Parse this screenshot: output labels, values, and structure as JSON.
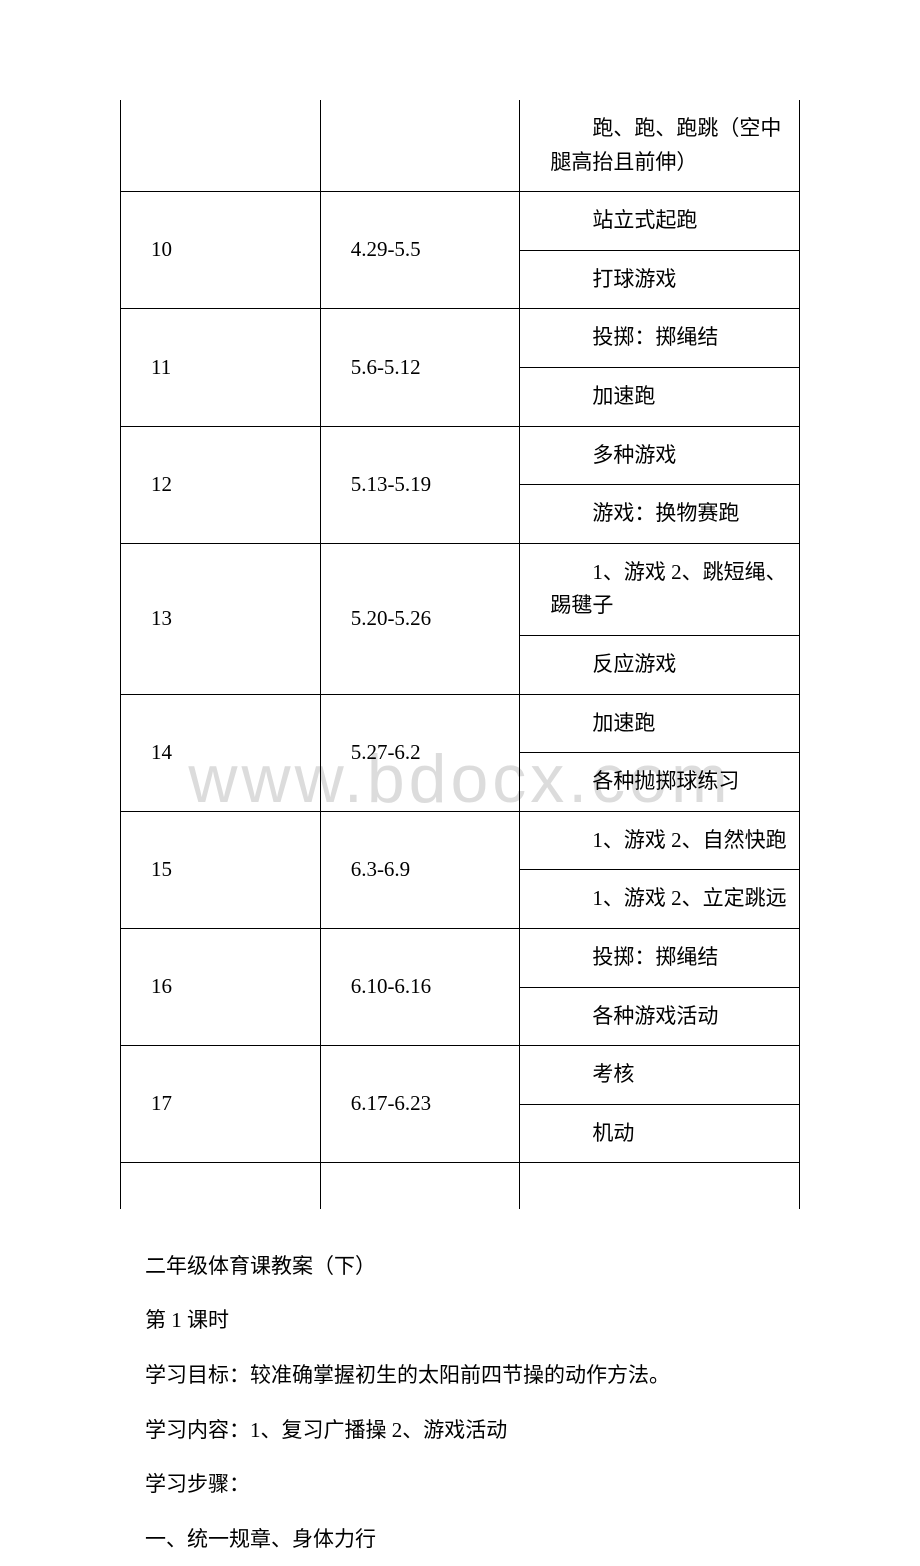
{
  "watermark": "www.bdocx.com",
  "table": {
    "rows": [
      {
        "week": "",
        "date": "",
        "contents": [
          "　　跑、跑、跑跳（空中腿高抬且前伸）"
        ],
        "top_open": true
      },
      {
        "week": "10",
        "date": "4.29-5.5",
        "contents": [
          "　　站立式起跑",
          "　　打球游戏"
        ]
      },
      {
        "week": "11",
        "date": "5.6-5.12",
        "contents": [
          "　　投掷：掷绳结",
          "　　加速跑"
        ]
      },
      {
        "week": "12",
        "date": "5.13-5.19",
        "contents": [
          "　　多种游戏",
          "　　游戏：换物赛跑"
        ]
      },
      {
        "week": "13",
        "date": "5.20-5.26",
        "contents": [
          "　　1、游戏 2、跳短绳、踢毽子",
          "　　反应游戏"
        ]
      },
      {
        "week": "14",
        "date": "5.27-6.2",
        "contents": [
          "　　加速跑",
          "　　各种抛掷球练习"
        ]
      },
      {
        "week": "15",
        "date": "6.3-6.9",
        "contents": [
          "　　1、游戏 2、自然快跑",
          "　　1、游戏 2、立定跳远"
        ]
      },
      {
        "week": "16",
        "date": "6.10-6.16",
        "contents": [
          "　　投掷：掷绳结",
          "　　各种游戏活动"
        ]
      },
      {
        "week": "17",
        "date": "6.17-6.23",
        "contents": [
          "　　考核",
          "　　机动"
        ]
      }
    ],
    "trailing_empty_row": true
  },
  "body_text": [
    "二年级体育课教案（下）",
    "第 1 课时",
    "学习目标：较准确掌握初生的太阳前四节操的动作方法。",
    "学习内容：1、复习广播操 2、游戏活动",
    "学习步骤：",
    "一、统一规章、身体力行"
  ]
}
